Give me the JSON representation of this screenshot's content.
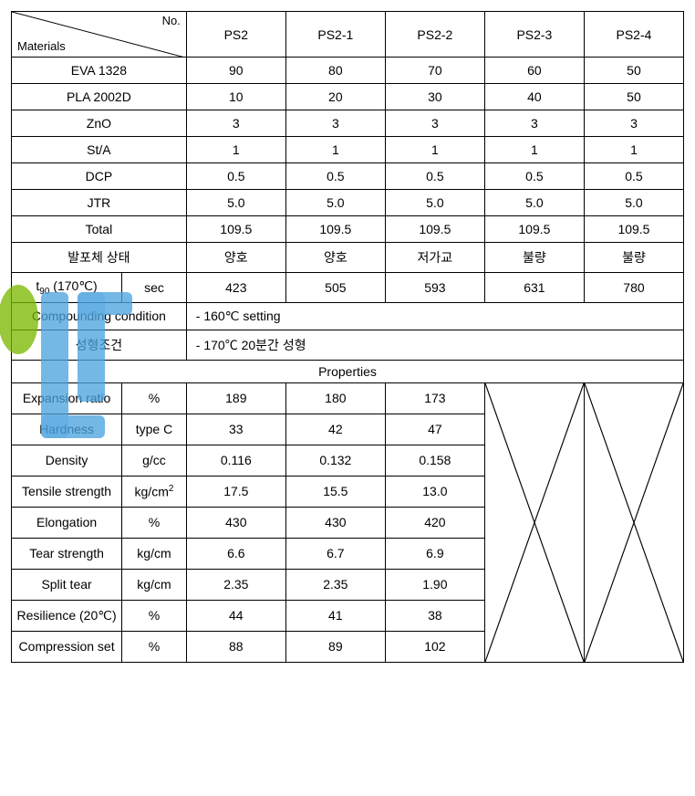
{
  "header": {
    "corner_no": "No.",
    "corner_materials": "Materials",
    "cols": [
      "PS2",
      "PS2-1",
      "PS2-2",
      "PS2-3",
      "PS2-4"
    ]
  },
  "materials": [
    {
      "name": "EVA 1328",
      "vals": [
        "90",
        "80",
        "70",
        "60",
        "50"
      ]
    },
    {
      "name": "PLA 2002D",
      "vals": [
        "10",
        "20",
        "30",
        "40",
        "50"
      ]
    },
    {
      "name": "ZnO",
      "vals": [
        "3",
        "3",
        "3",
        "3",
        "3"
      ]
    },
    {
      "name": "St/A",
      "vals": [
        "1",
        "1",
        "1",
        "1",
        "1"
      ]
    },
    {
      "name": "DCP",
      "vals": [
        "0.5",
        "0.5",
        "0.5",
        "0.5",
        "0.5"
      ]
    },
    {
      "name": "JTR",
      "vals": [
        "5.0",
        "5.0",
        "5.0",
        "5.0",
        "5.0"
      ]
    },
    {
      "name": "Total",
      "vals": [
        "109.5",
        "109.5",
        "109.5",
        "109.5",
        "109.5"
      ]
    },
    {
      "name": "발포체 상태",
      "vals": [
        "양호",
        "양호",
        "저가교",
        "불량",
        "불량"
      ]
    }
  ],
  "t90": {
    "label_pre": "t",
    "label_sub": "90",
    "label_post": " (170℃)",
    "unit": "sec",
    "vals": [
      "423",
      "505",
      "593",
      "631",
      "780"
    ]
  },
  "compounding": {
    "label": "Compounding condition",
    "value": "- 160℃ setting"
  },
  "molding": {
    "label": "성형조건",
    "value": "- 170℃ 20분간 성형"
  },
  "properties_header": "Properties",
  "properties": [
    {
      "name": "Expansion ratio",
      "unit": "%",
      "vals": [
        "189",
        "180",
        "173"
      ]
    },
    {
      "name": "Hardness",
      "unit": "type C",
      "vals": [
        "33",
        "42",
        "47"
      ]
    },
    {
      "name": "Density",
      "unit": "g/cc",
      "vals": [
        "0.116",
        "0.132",
        "0.158"
      ]
    },
    {
      "name": "Tensile strength",
      "unit_pre": "kg/cm",
      "unit_sup": "2",
      "vals": [
        "17.5",
        "15.5",
        "13.0"
      ]
    },
    {
      "name": "Elongation",
      "unit": "%",
      "vals": [
        "430",
        "430",
        "420"
      ]
    },
    {
      "name": "Tear strength",
      "unit": "kg/cm",
      "vals": [
        "6.6",
        "6.7",
        "6.9"
      ]
    },
    {
      "name": "Split tear",
      "unit": "kg/cm",
      "vals": [
        "2.35",
        "2.35",
        "1.90"
      ]
    },
    {
      "name": "Resilience (20℃)",
      "unit": "%",
      "vals": [
        "44",
        "41",
        "38"
      ]
    },
    {
      "name": "Compression set",
      "unit": "%",
      "vals": [
        "88",
        "89",
        "102"
      ]
    }
  ],
  "colors": {
    "border": "#000000",
    "background": "#ffffff",
    "text": "#000000",
    "wm_green": "#7ab800",
    "wm_blue": "#4aa3df"
  }
}
